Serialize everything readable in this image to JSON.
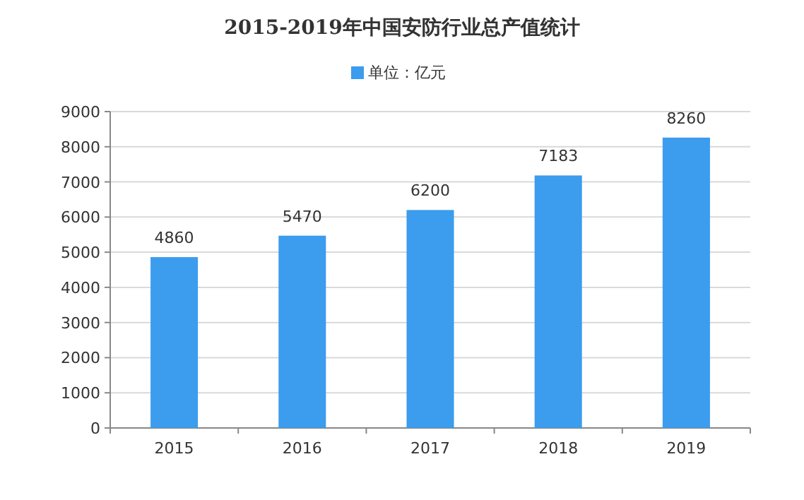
{
  "chart_data": {
    "type": "bar",
    "title": "2015-2019年中国安防行业总产值统计",
    "categories": [
      "2015",
      "2016",
      "2017",
      "2018",
      "2019"
    ],
    "series": [
      {
        "name": "单位：亿元",
        "color": "#3c9ced",
        "values": [
          4860,
          5470,
          6200,
          7183,
          8260
        ]
      }
    ],
    "ylim": [
      0,
      9000
    ],
    "yticks": [
      0,
      1000,
      2000,
      3000,
      4000,
      5000,
      6000,
      7000,
      8000,
      9000
    ],
    "grid": "y",
    "legend": "top",
    "data_labels": true
  }
}
